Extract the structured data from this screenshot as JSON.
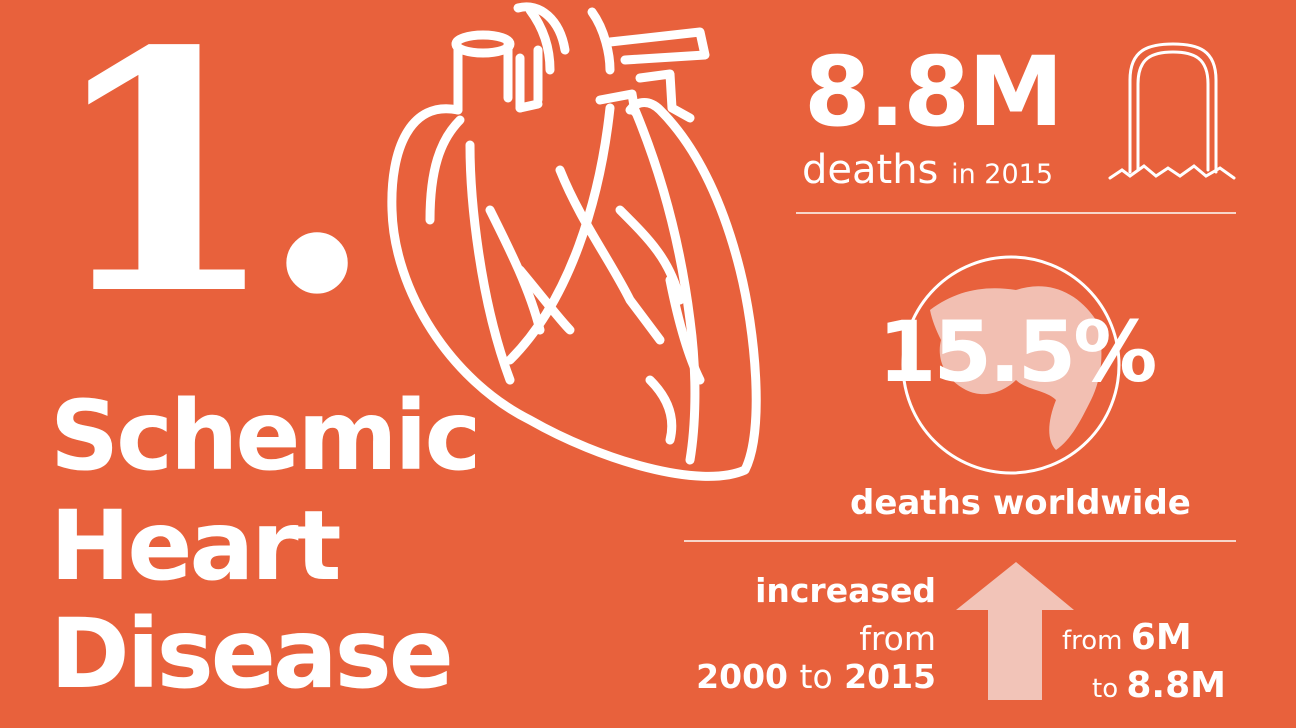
{
  "rank": "1.",
  "disease": {
    "line1": "Schemic",
    "line2": "Heart",
    "line3": "Disease"
  },
  "deaths_total": {
    "value": "8.8M",
    "label": "deaths",
    "suffix": "in 2015"
  },
  "worldwide_share": {
    "value": "15.5%",
    "label": "deaths worldwide"
  },
  "trend": {
    "line1": "increased",
    "line2": "from",
    "year_start": "2000",
    "to_word": "to",
    "year_end": "2015",
    "from_word": "from",
    "from_value": "6M",
    "to_word2": "to",
    "to_value": "8.8M"
  },
  "colors": {
    "background": "#e8613c",
    "foreground": "#ffffff",
    "accent_light": "#f2c4b8"
  },
  "icons": [
    "heart-icon",
    "tombstone-icon",
    "globe-icon",
    "up-arrow-icon"
  ]
}
